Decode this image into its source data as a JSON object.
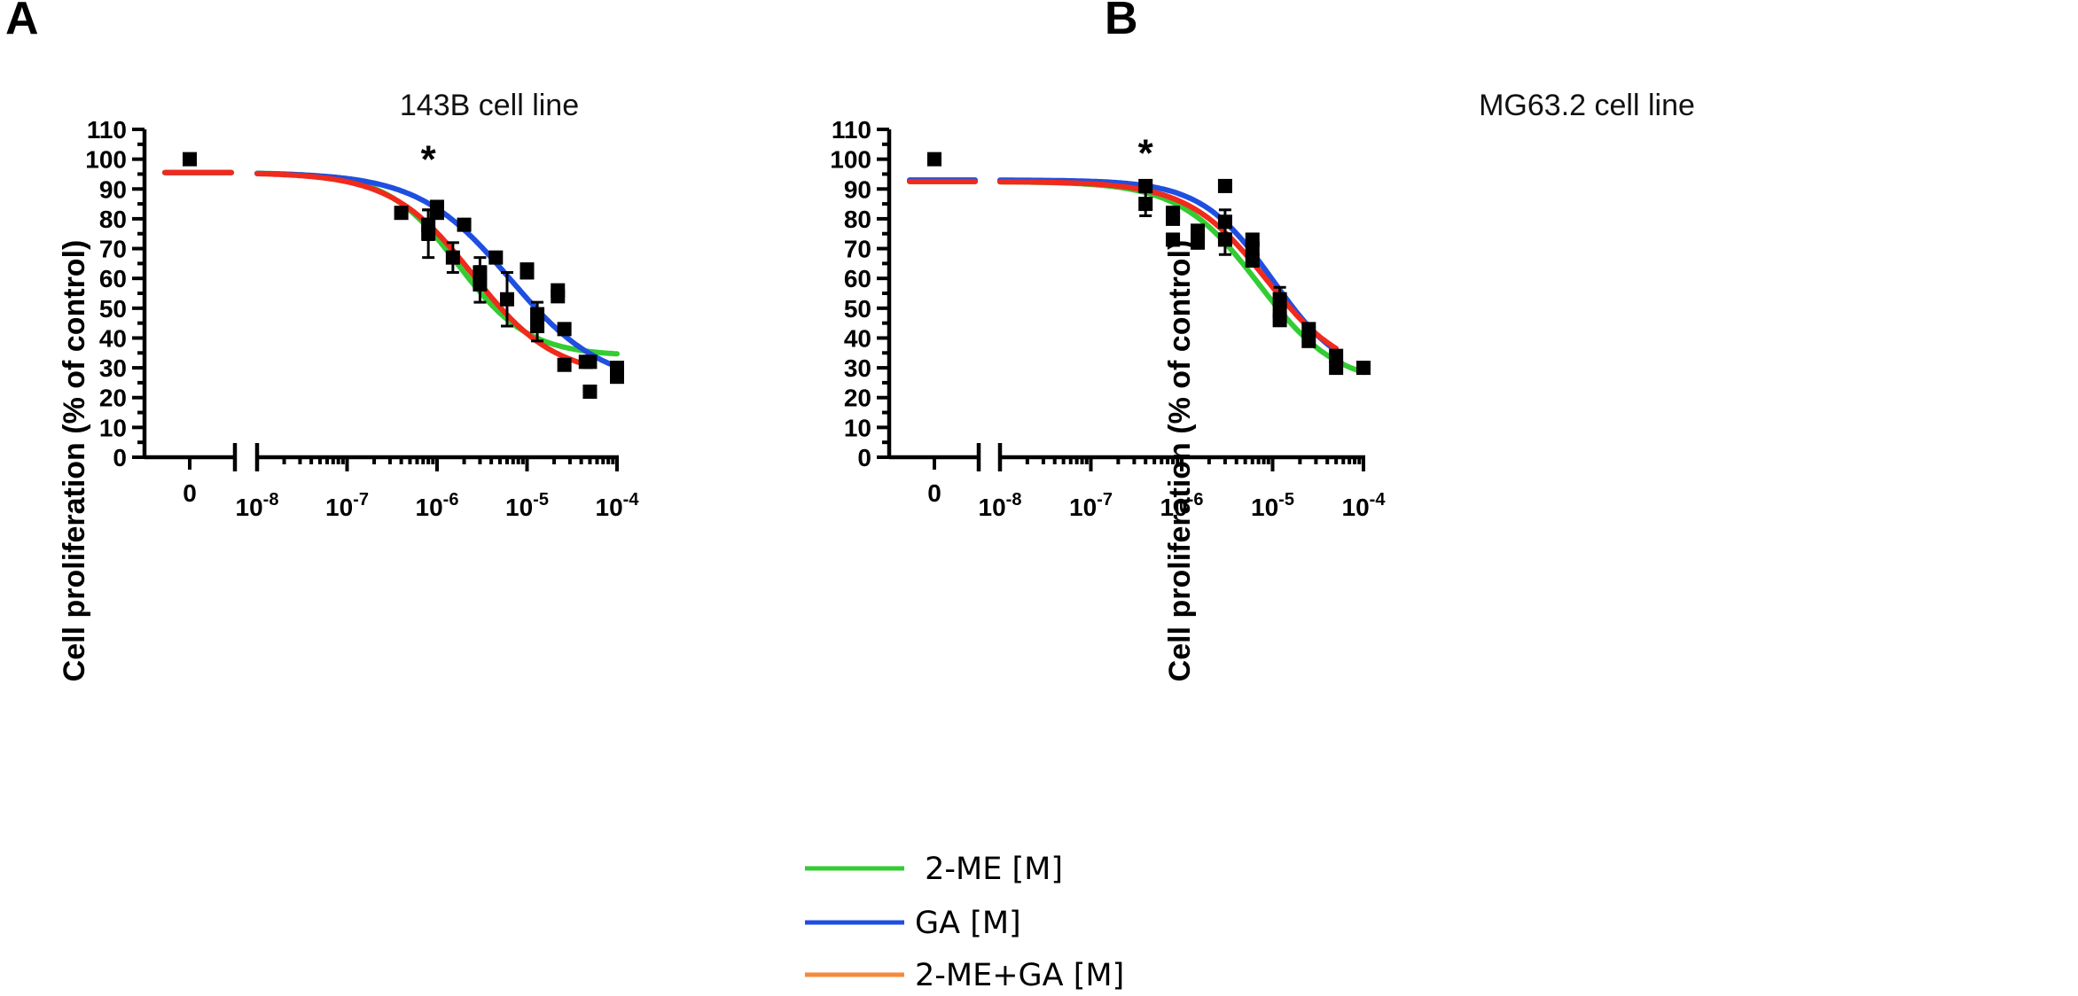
{
  "colors": {
    "2-ME": "#33cc33",
    "GA": "#1f4fe0",
    "2-ME+GA": "#f02a1c",
    "legend_2-ME+GA": "#f58a3a",
    "points": "#000000"
  },
  "legend": [
    {
      "key": "2-ME",
      "label": " 2-ME [M]"
    },
    {
      "key": "GA",
      "label": "GA [M]"
    },
    {
      "key": "2-ME+GA",
      "label": "2-ME+GA [M]"
    }
  ],
  "chart_data": [
    {
      "type": "scatter",
      "panel": "A",
      "title": "143B cell line",
      "ylabel": "Cell proliferation (% of control)",
      "xlabel": "",
      "xscale": "log",
      "x_ticks": [
        {
          "value": "control",
          "base": "0",
          "exp": ""
        },
        {
          "value": 1e-08,
          "base": "10",
          "exp": "-8"
        },
        {
          "value": 1e-07,
          "base": "10",
          "exp": "-7"
        },
        {
          "value": 1e-06,
          "base": "10",
          "exp": "-6"
        },
        {
          "value": 1e-05,
          "base": "10",
          "exp": "-5"
        },
        {
          "value": 0.0001,
          "base": "10",
          "exp": "-4"
        }
      ],
      "ylim": [
        0,
        110
      ],
      "y_ticks": [
        0,
        10,
        20,
        30,
        40,
        50,
        60,
        70,
        80,
        90,
        100,
        110
      ],
      "annotation": {
        "text": "*",
        "x": 8e-07,
        "y": 101
      },
      "control_point": {
        "y": 100
      },
      "points": [
        {
          "x": 4e-07,
          "y": 82
        },
        {
          "x": 8e-07,
          "y": 75,
          "err": 8
        },
        {
          "x": 8e-07,
          "y": 78,
          "err": 5
        },
        {
          "x": 1e-06,
          "y": 82
        },
        {
          "x": 1e-06,
          "y": 84
        },
        {
          "x": 1.5e-06,
          "y": 67,
          "err": 5
        },
        {
          "x": 2e-06,
          "y": 78
        },
        {
          "x": 3e-06,
          "y": 62,
          "err": 5
        },
        {
          "x": 3e-06,
          "y": 58,
          "err": 6
        },
        {
          "x": 4.5e-06,
          "y": 67
        },
        {
          "x": 6e-06,
          "y": 53,
          "err": 9
        },
        {
          "x": 1e-05,
          "y": 62
        },
        {
          "x": 1e-05,
          "y": 63
        },
        {
          "x": 1.3e-05,
          "y": 44,
          "err": 5
        },
        {
          "x": 1.3e-05,
          "y": 48,
          "err": 4
        },
        {
          "x": 2.2e-05,
          "y": 56
        },
        {
          "x": 2.2e-05,
          "y": 54
        },
        {
          "x": 2.6e-05,
          "y": 43
        },
        {
          "x": 2.6e-05,
          "y": 31
        },
        {
          "x": 4.5e-05,
          "y": 32
        },
        {
          "x": 5e-05,
          "y": 32
        },
        {
          "x": 5e-05,
          "y": 22
        },
        {
          "x": 0.0001,
          "y": 30
        },
        {
          "x": 0.0001,
          "y": 27
        }
      ],
      "series": [
        {
          "name": "2-ME",
          "top": 95.5,
          "bottom": 34,
          "ec50": 1.7e-06,
          "hill": 1.1,
          "x_max": 0.0001
        },
        {
          "name": "GA",
          "top": 95.5,
          "bottom": 24,
          "ec50": 6.5e-06,
          "hill": 0.85,
          "x_max": 0.0001
        },
        {
          "name": "2-ME+GA",
          "top": 95.5,
          "bottom": 27,
          "ec50": 2.5e-06,
          "hill": 0.95,
          "x_max": 5e-05
        }
      ]
    },
    {
      "type": "scatter",
      "panel": "B",
      "title": "MG63.2 cell line",
      "ylabel": "Cell proliferation (% of control)",
      "xlabel": "",
      "xscale": "log",
      "x_ticks": [
        {
          "value": "control",
          "base": "0",
          "exp": ""
        },
        {
          "value": 1e-08,
          "base": "10",
          "exp": "-8"
        },
        {
          "value": 1e-07,
          "base": "10",
          "exp": "-7"
        },
        {
          "value": 1e-06,
          "base": "10",
          "exp": "-6"
        },
        {
          "value": 1e-05,
          "base": "10",
          "exp": "-5"
        },
        {
          "value": 0.0001,
          "base": "10",
          "exp": "-4"
        }
      ],
      "ylim": [
        0,
        110
      ],
      "y_ticks": [
        0,
        10,
        20,
        30,
        40,
        50,
        60,
        70,
        80,
        90,
        100,
        110
      ],
      "annotation": {
        "text": "*",
        "x": 4e-07,
        "y": 103
      },
      "control_point": {
        "y": 100
      },
      "points": [
        {
          "x": 4e-07,
          "y": 91
        },
        {
          "x": 4e-07,
          "y": 85,
          "err": 4
        },
        {
          "x": 8e-07,
          "y": 82
        },
        {
          "x": 8e-07,
          "y": 80
        },
        {
          "x": 8e-07,
          "y": 73
        },
        {
          "x": 1.5e-06,
          "y": 76
        },
        {
          "x": 1.5e-06,
          "y": 74,
          "err": 3
        },
        {
          "x": 1.5e-06,
          "y": 72
        },
        {
          "x": 3e-06,
          "y": 91
        },
        {
          "x": 3e-06,
          "y": 79,
          "err": 4
        },
        {
          "x": 3e-06,
          "y": 73,
          "err": 5
        },
        {
          "x": 6e-06,
          "y": 73
        },
        {
          "x": 6e-06,
          "y": 70
        },
        {
          "x": 6e-06,
          "y": 66
        },
        {
          "x": 1.2e-05,
          "y": 53,
          "err": 4
        },
        {
          "x": 1.2e-05,
          "y": 49
        },
        {
          "x": 1.2e-05,
          "y": 46
        },
        {
          "x": 2.5e-05,
          "y": 43
        },
        {
          "x": 2.5e-05,
          "y": 39
        },
        {
          "x": 5e-05,
          "y": 34
        },
        {
          "x": 5e-05,
          "y": 30
        },
        {
          "x": 0.0001,
          "y": 30
        }
      ],
      "series": [
        {
          "name": "2-ME",
          "top": 92.5,
          "bottom": 24,
          "ec50": 7e-06,
          "hill": 1.0,
          "x_max": 0.0001
        },
        {
          "name": "GA",
          "top": 93,
          "bottom": 26,
          "ec50": 1e-05,
          "hill": 1.1,
          "x_max": 5e-05
        },
        {
          "name": "2-ME+GA",
          "top": 92.5,
          "bottom": 27,
          "ec50": 8.5e-06,
          "hill": 1.0,
          "x_max": 5e-05
        }
      ]
    }
  ]
}
